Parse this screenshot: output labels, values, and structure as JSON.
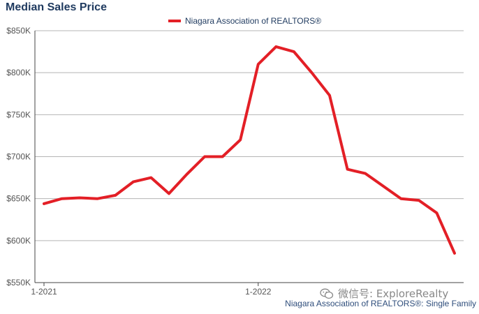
{
  "header": {
    "title": "Median Sales Price"
  },
  "legend": {
    "label": "Niagara Association of REALTORS®"
  },
  "watermark": {
    "text": "微信号: ExploreRealty",
    "icon": "wechat-icon"
  },
  "footer": {
    "source": "Niagara Association of REALTORS®: Single Family"
  },
  "colors": {
    "series": "#e31f26",
    "grid": "#b5b5b5",
    "axis": "#555555",
    "title": "#1f3a5f"
  },
  "chart_data": {
    "type": "line",
    "title": "Median Sales Price",
    "xlabel": "",
    "ylabel": "",
    "ylim": [
      550000,
      850000
    ],
    "yticks": [
      550000,
      600000,
      650000,
      700000,
      750000,
      800000,
      850000
    ],
    "ytick_labels": [
      "$550K",
      "$600K",
      "$650K",
      "$700K",
      "$750K",
      "$800K",
      "$850K"
    ],
    "x": [
      "1-2021",
      "2-2021",
      "3-2021",
      "4-2021",
      "5-2021",
      "6-2021",
      "7-2021",
      "8-2021",
      "9-2021",
      "10-2021",
      "11-2021",
      "12-2021",
      "1-2022",
      "2-2022",
      "3-2022",
      "4-2022",
      "5-2022",
      "6-2022",
      "7-2022",
      "8-2022",
      "9-2022",
      "10-2022",
      "11-2022",
      "12-2022"
    ],
    "xtick_labels": [
      {
        "index": 0,
        "label": "1-2021"
      },
      {
        "index": 12,
        "label": "1-2022"
      }
    ],
    "series": [
      {
        "name": "Niagara Association of REALTORS®",
        "values": [
          644000,
          650000,
          651000,
          650000,
          654000,
          670000,
          675000,
          656000,
          679000,
          700000,
          700000,
          720000,
          810000,
          831000,
          825000,
          800000,
          773000,
          685000,
          680000,
          665000,
          650000,
          648000,
          633000,
          585000
        ]
      }
    ],
    "grid": true,
    "legend_position": "top-center"
  }
}
